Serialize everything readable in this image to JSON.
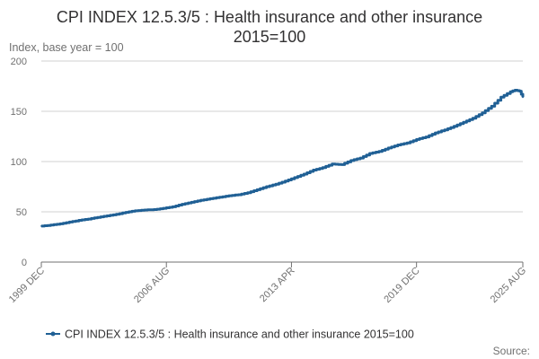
{
  "chart_data": {
    "type": "line",
    "title": "CPI INDEX 12.5.3/5 : Health insurance and other insurance 2015=100",
    "title_line1": "CPI INDEX 12.5.3/5 : Health insurance and other insurance",
    "title_line2": "2015=100",
    "ylabel": "Index, base year = 100",
    "xlabel": "",
    "ylim": [
      0,
      200
    ],
    "y_ticks": [
      "0",
      "50",
      "100",
      "150",
      "200"
    ],
    "y_tick_values": [
      0,
      50,
      100,
      150,
      200
    ],
    "x_range": [
      "1999 DEC",
      "2025 AUG"
    ],
    "x_ticks": [
      "1999 DEC",
      "2006 AUG",
      "2013 APR",
      "2019 DEC",
      "2025 AUG"
    ],
    "grid": "horizontal",
    "legend_position": "bottom",
    "colors": {
      "series": "#206095",
      "grid": "#d0d0d0",
      "axis": "#707070",
      "text": "#323132"
    },
    "series": [
      {
        "name": "CPI INDEX 12.5.3/5 : Health insurance and other insurance 2015=100",
        "points": [
          [
            "1999 DEC",
            35.8
          ],
          [
            "2000 JUN",
            36.8
          ],
          [
            "2000 DEC",
            38.0
          ],
          [
            "2001 JUN",
            39.8
          ],
          [
            "2001 DEC",
            41.5
          ],
          [
            "2002 JUN",
            42.8
          ],
          [
            "2002 DEC",
            44.5
          ],
          [
            "2003 JUN",
            46.0
          ],
          [
            "2003 DEC",
            47.5
          ],
          [
            "2004 JUN",
            49.5
          ],
          [
            "2004 DEC",
            51.0
          ],
          [
            "2005 JUN",
            51.8
          ],
          [
            "2005 DEC",
            52.2
          ],
          [
            "2006 JUN",
            53.5
          ],
          [
            "2006 DEC",
            55.0
          ],
          [
            "2007 JUN",
            57.5
          ],
          [
            "2007 DEC",
            59.5
          ],
          [
            "2008 JUN",
            61.5
          ],
          [
            "2008 DEC",
            63.0
          ],
          [
            "2009 JUN",
            64.5
          ],
          [
            "2009 DEC",
            66.0
          ],
          [
            "2010 JUN",
            67.0
          ],
          [
            "2010 DEC",
            69.0
          ],
          [
            "2011 JUN",
            72.0
          ],
          [
            "2011 DEC",
            75.0
          ],
          [
            "2012 JUN",
            77.5
          ],
          [
            "2012 DEC",
            80.5
          ],
          [
            "2013 JUN",
            84.0
          ],
          [
            "2013 DEC",
            87.5
          ],
          [
            "2014 JUN",
            91.5
          ],
          [
            "2014 DEC",
            94.0
          ],
          [
            "2015 JUN",
            97.5
          ],
          [
            "2015 DEC",
            97.0
          ],
          [
            "2016 JUN",
            101.0
          ],
          [
            "2016 DEC",
            103.5
          ],
          [
            "2017 JUN",
            108.0
          ],
          [
            "2017 DEC",
            110.0
          ],
          [
            "2018 JUN",
            113.5
          ],
          [
            "2018 DEC",
            116.5
          ],
          [
            "2019 JUN",
            118.5
          ],
          [
            "2019 DEC",
            122.0
          ],
          [
            "2020 JUN",
            124.5
          ],
          [
            "2020 DEC",
            128.5
          ],
          [
            "2021 JUN",
            131.5
          ],
          [
            "2021 DEC",
            135.0
          ],
          [
            "2022 JUN",
            139.0
          ],
          [
            "2022 DEC",
            143.0
          ],
          [
            "2023 JUN",
            148.5
          ],
          [
            "2023 DEC",
            155.0
          ],
          [
            "2024 JUN",
            164.0
          ],
          [
            "2024 DEC",
            169.5
          ],
          [
            "2025 MAR",
            171.0
          ],
          [
            "2025 JUN",
            170.0
          ],
          [
            "2025 AUG",
            164.0
          ]
        ]
      }
    ]
  },
  "source_label": "Source:"
}
